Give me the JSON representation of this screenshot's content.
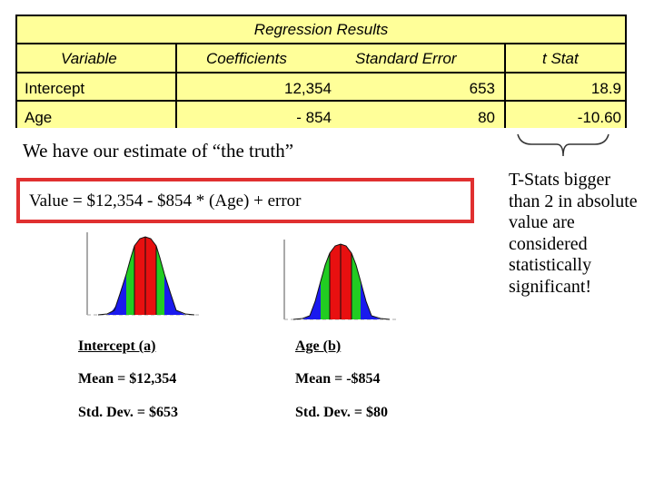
{
  "table": {
    "title": "Regression Results",
    "headers": [
      "Variable",
      "Coefficients",
      "Standard Error",
      "t Stat"
    ],
    "rows": [
      {
        "variable": "Intercept",
        "coefficient": "12,354",
        "std_error": "653",
        "t_stat": "18.9"
      },
      {
        "variable": "Age",
        "coefficient": "- 854",
        "std_error": "80",
        "t_stat": "-10.60"
      }
    ]
  },
  "truth_text": "We have our estimate of “the truth”",
  "equation": "Value = $12,354 - $854 * (Age) + error",
  "note": "T-Stats bigger than 2 in absolute value are considered statistically significant!",
  "stats": {
    "intercept": {
      "label": "Intercept (a)",
      "mean": "Mean = $12,354",
      "sd": "Std. Dev. = $653"
    },
    "age": {
      "label": "Age (b)",
      "mean": "Mean = -$854",
      "sd": "Std. Dev. = $80"
    }
  },
  "colors": {
    "table_bg": "#ffff99",
    "red": "#e81010",
    "green": "#22cc22",
    "blue": "#1a1aee",
    "box_border": "#e03030"
  }
}
